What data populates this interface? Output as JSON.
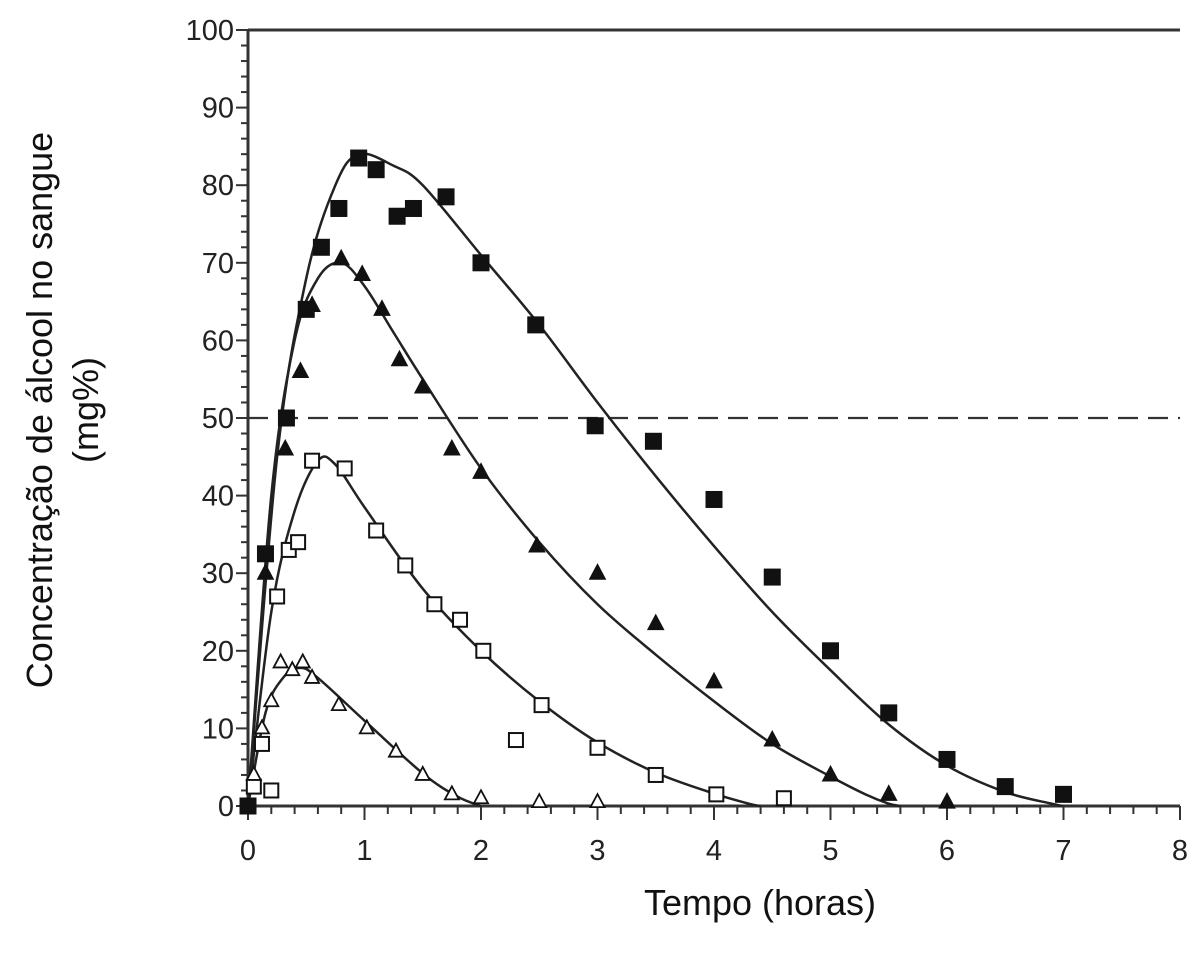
{
  "chart_data": {
    "type": "scatter",
    "xlabel": "Tempo (horas)",
    "ylabel": [
      "Concentração de álcool no sangue",
      "(mg%)"
    ],
    "xlim": [
      0,
      8
    ],
    "ylim": [
      0,
      100
    ],
    "x_ticks": [
      "0",
      "1",
      "2",
      "3",
      "4",
      "5",
      "6",
      "7",
      "8"
    ],
    "y_ticks": [
      "0",
      "10",
      "20",
      "30",
      "40",
      "50",
      "60",
      "70",
      "80",
      "90",
      "100"
    ],
    "grid": false,
    "reference_line": {
      "y": 50,
      "style": "dashed"
    },
    "series": [
      {
        "marker": "filled-square",
        "points": [
          [
            0,
            0
          ],
          [
            0.15,
            32.5
          ],
          [
            0.33,
            50
          ],
          [
            0.5,
            64
          ],
          [
            0.63,
            72
          ],
          [
            0.78,
            77
          ],
          [
            0.95,
            83.5
          ],
          [
            1.1,
            82
          ],
          [
            1.28,
            76
          ],
          [
            1.42,
            77
          ],
          [
            1.7,
            78.5
          ],
          [
            2.0,
            70
          ],
          [
            2.47,
            62
          ],
          [
            2.98,
            49
          ],
          [
            3.48,
            47
          ],
          [
            4.0,
            39.5
          ],
          [
            4.5,
            29.5
          ],
          [
            5.0,
            20
          ],
          [
            5.5,
            12
          ],
          [
            6.0,
            6
          ],
          [
            6.5,
            2.5
          ],
          [
            7.0,
            1.5
          ]
        ],
        "curve": [
          [
            0,
            0
          ],
          [
            0.25,
            45
          ],
          [
            0.5,
            68
          ],
          [
            0.75,
            80
          ],
          [
            0.95,
            84
          ],
          [
            1.25,
            82.5
          ],
          [
            1.5,
            80
          ],
          [
            2.0,
            71
          ],
          [
            2.5,
            62
          ],
          [
            3.0,
            52
          ],
          [
            3.5,
            42.5
          ],
          [
            4.0,
            33.5
          ],
          [
            4.5,
            25
          ],
          [
            5.0,
            17.5
          ],
          [
            5.5,
            10.5
          ],
          [
            6.0,
            5.2
          ],
          [
            6.5,
            1.8
          ],
          [
            6.9,
            0.3
          ],
          [
            7.0,
            0
          ]
        ],
        "color": "#111111"
      },
      {
        "marker": "filled-triangle",
        "points": [
          [
            0.15,
            30
          ],
          [
            0.32,
            46
          ],
          [
            0.45,
            56
          ],
          [
            0.55,
            64.5
          ],
          [
            0.8,
            70.5
          ],
          [
            0.98,
            68.5
          ],
          [
            1.15,
            64
          ],
          [
            1.3,
            57.5
          ],
          [
            1.5,
            54
          ],
          [
            1.75,
            46
          ],
          [
            2.0,
            43
          ],
          [
            2.48,
            33.5
          ],
          [
            3.0,
            30
          ],
          [
            3.5,
            23.5
          ],
          [
            4.0,
            16
          ],
          [
            4.5,
            8.5
          ],
          [
            5.0,
            4
          ],
          [
            5.5,
            1.5
          ],
          [
            6.0,
            0.5
          ]
        ],
        "curve": [
          [
            0,
            0
          ],
          [
            0.2,
            40
          ],
          [
            0.4,
            60
          ],
          [
            0.6,
            68
          ],
          [
            0.8,
            70
          ],
          [
            1.0,
            67
          ],
          [
            1.25,
            61
          ],
          [
            1.5,
            55
          ],
          [
            2.0,
            43.5
          ],
          [
            2.5,
            34
          ],
          [
            3.0,
            26
          ],
          [
            3.5,
            19.5
          ],
          [
            4.0,
            13.5
          ],
          [
            4.5,
            8
          ],
          [
            5.0,
            3.8
          ],
          [
            5.3,
            1.5
          ],
          [
            5.5,
            0.3
          ],
          [
            5.6,
            0
          ]
        ],
        "color": "#111111"
      },
      {
        "marker": "open-square",
        "points": [
          [
            0.05,
            2.5
          ],
          [
            0.12,
            8
          ],
          [
            0.2,
            2
          ],
          [
            0.25,
            27
          ],
          [
            0.35,
            33
          ],
          [
            0.43,
            34
          ],
          [
            0.55,
            44.5
          ],
          [
            0.83,
            43.5
          ],
          [
            1.1,
            35.5
          ],
          [
            1.35,
            31
          ],
          [
            1.6,
            26
          ],
          [
            1.82,
            24
          ],
          [
            2.02,
            20
          ],
          [
            2.3,
            8.5
          ],
          [
            2.52,
            13
          ],
          [
            3.0,
            7.5
          ],
          [
            3.5,
            4
          ],
          [
            4.02,
            1.5
          ],
          [
            4.6,
            1
          ]
        ],
        "curve": [
          [
            0,
            0
          ],
          [
            0.2,
            25
          ],
          [
            0.4,
            38
          ],
          [
            0.6,
            44.5
          ],
          [
            0.75,
            44
          ],
          [
            1.0,
            38.5
          ],
          [
            1.5,
            28
          ],
          [
            2.0,
            20
          ],
          [
            2.5,
            13.5
          ],
          [
            3.0,
            8.2
          ],
          [
            3.5,
            4.3
          ],
          [
            4.0,
            1.6
          ],
          [
            4.3,
            0.3
          ],
          [
            4.4,
            0
          ]
        ],
        "color": "#111111"
      },
      {
        "marker": "open-triangle",
        "points": [
          [
            0.05,
            4
          ],
          [
            0.12,
            10
          ],
          [
            0.2,
            13.5
          ],
          [
            0.28,
            18.5
          ],
          [
            0.38,
            17.5
          ],
          [
            0.47,
            18.5
          ],
          [
            0.55,
            16.5
          ],
          [
            0.78,
            13
          ],
          [
            1.02,
            10
          ],
          [
            1.27,
            7
          ],
          [
            1.5,
            4
          ],
          [
            1.75,
            1.5
          ],
          [
            2.0,
            1
          ],
          [
            2.5,
            0.5
          ],
          [
            3.0,
            0.5
          ]
        ],
        "curve": [
          [
            0,
            0
          ],
          [
            0.15,
            12
          ],
          [
            0.3,
            16.5
          ],
          [
            0.45,
            17.8
          ],
          [
            0.6,
            16.5
          ],
          [
            1.0,
            11
          ],
          [
            1.5,
            4.2
          ],
          [
            1.8,
            1.2
          ],
          [
            2.0,
            0
          ]
        ],
        "color": "#111111"
      }
    ]
  }
}
